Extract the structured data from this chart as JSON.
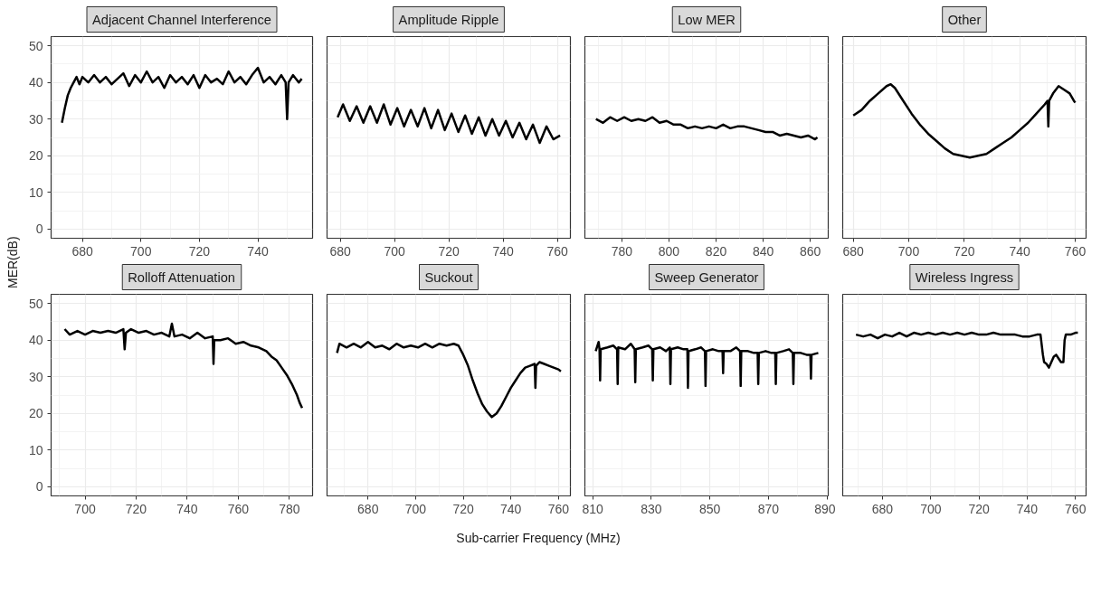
{
  "chart_data": [
    {
      "type": "line",
      "title": "Adjacent Channel Interference",
      "ylabel": "MER(dB)",
      "color": "#000000",
      "grid": true,
      "xlim": [
        669.3,
        758.7
      ],
      "xticks": [
        680,
        700,
        720,
        740
      ],
      "ylim": [
        -2.5,
        52.5
      ],
      "yticks": [
        0,
        10,
        20,
        30,
        40,
        50
      ],
      "x": [
        673,
        674,
        675,
        676,
        677,
        678,
        679,
        680,
        682,
        684,
        686,
        688,
        690,
        692,
        694,
        696,
        698,
        700,
        702,
        704,
        706,
        708,
        710,
        712,
        714,
        716,
        718,
        720,
        722,
        724,
        726,
        728,
        730,
        732,
        734,
        736,
        738,
        740,
        742,
        744,
        746,
        748,
        749.5,
        750,
        750.5,
        752,
        754,
        755
      ],
      "values": [
        29,
        33,
        36.5,
        38.5,
        40,
        41.5,
        39.5,
        41.5,
        40,
        42,
        40,
        41.5,
        39.5,
        41,
        42.5,
        39,
        42,
        40,
        43,
        40,
        41.5,
        38.5,
        42,
        40,
        41.5,
        39.5,
        42,
        38.5,
        42,
        40,
        41,
        39.5,
        43,
        40,
        41.5,
        39.5,
        42,
        44,
        40,
        41.5,
        39.5,
        42,
        40,
        30,
        40,
        42,
        40,
        41
      ]
    },
    {
      "type": "line",
      "title": "Amplitude Ripple",
      "color": "#000000",
      "grid": true,
      "tick_labels": "x",
      "xlim": [
        675.1,
        764.8
      ],
      "xticks": [
        680,
        700,
        720,
        740,
        760
      ],
      "ylim": [
        -2.5,
        52.5
      ],
      "yticks": [
        0,
        10,
        20,
        30,
        40,
        50
      ],
      "x": [
        679,
        681,
        683.5,
        686,
        688.5,
        691,
        693.5,
        696,
        698.5,
        701,
        703.5,
        706,
        708.5,
        711,
        713.5,
        716,
        718.5,
        721,
        723.5,
        726,
        728.5,
        731,
        733.5,
        736,
        738.5,
        741,
        743.5,
        746,
        748.5,
        751,
        753.5,
        756,
        758.5,
        761
      ],
      "values": [
        30.5,
        34,
        29.5,
        33.5,
        29,
        33.5,
        29,
        34,
        28.5,
        33,
        28,
        32.5,
        28,
        33,
        27.5,
        32.5,
        27,
        31.5,
        26.5,
        31,
        26,
        30.5,
        25.5,
        30,
        25.5,
        29.5,
        25,
        29,
        24.5,
        28.5,
        23.5,
        28,
        24.5,
        25.5
      ]
    },
    {
      "type": "line",
      "title": "Low MER",
      "color": "#000000",
      "grid": true,
      "tick_labels": "x",
      "xlim": [
        764.3,
        867.6
      ],
      "xticks": [
        780,
        800,
        820,
        840,
        860
      ],
      "ylim": [
        -2.5,
        52.5
      ],
      "yticks": [
        0,
        10,
        20,
        30,
        40,
        50
      ],
      "x": [
        769,
        772,
        775,
        778,
        781,
        784,
        787,
        790,
        793,
        796,
        799,
        802,
        805,
        808,
        811,
        814,
        817,
        820,
        823,
        826,
        829,
        832,
        835,
        838,
        841,
        844,
        847,
        850,
        853,
        856,
        859,
        862,
        863
      ],
      "values": [
        30,
        29,
        30.5,
        29.5,
        30.5,
        29.5,
        30,
        29.5,
        30.5,
        29,
        29.5,
        28.5,
        28.5,
        27.5,
        28,
        27.5,
        28,
        27.5,
        28.5,
        27.5,
        28,
        28,
        27.5,
        27,
        26.5,
        26.5,
        25.5,
        26,
        25.5,
        25,
        25.5,
        24.5,
        25
      ]
    },
    {
      "type": "line",
      "title": "Other",
      "color": "#000000",
      "grid": true,
      "tick_labels": "x",
      "xlim": [
        676.2,
        763.9
      ],
      "xticks": [
        680,
        700,
        720,
        740,
        760
      ],
      "ylim": [
        -2.5,
        52.5
      ],
      "yticks": [
        0,
        10,
        20,
        30,
        40,
        50
      ],
      "x": [
        680,
        683,
        686,
        689,
        692,
        693.5,
        695,
        698,
        701,
        704,
        707,
        710,
        713,
        716,
        719,
        722,
        725,
        728,
        731,
        734,
        737,
        740,
        743,
        746,
        749,
        750,
        750.3,
        750.6,
        752,
        754,
        756,
        758,
        759.5,
        760
      ],
      "values": [
        31,
        32.5,
        35,
        37,
        39,
        39.5,
        38.5,
        35,
        31.5,
        28.5,
        26,
        24,
        22,
        20.5,
        20,
        19.5,
        20,
        20.5,
        22,
        23.5,
        25,
        27,
        29,
        31.5,
        34,
        35,
        28,
        35,
        37,
        39,
        38,
        37,
        35,
        34.5
      ]
    },
    {
      "type": "line",
      "title": "Rolloff Attenuation",
      "color": "#000000",
      "grid": true,
      "xlim": [
        686.7,
        789.1
      ],
      "xticks": [
        700,
        720,
        740,
        760,
        780
      ],
      "ylim": [
        -2.5,
        52.5
      ],
      "yticks": [
        0,
        10,
        20,
        30,
        40,
        50
      ],
      "x": [
        692,
        694,
        697,
        700,
        703,
        706,
        709,
        712,
        715,
        715.5,
        716,
        718,
        721,
        724,
        727,
        730,
        733,
        734,
        735,
        738,
        741,
        744,
        747,
        750,
        750.3,
        750.6,
        753,
        756,
        759,
        762,
        765,
        768,
        771,
        773,
        775,
        777,
        779,
        781,
        783,
        784,
        785
      ],
      "values": [
        43,
        41.5,
        42.5,
        41.5,
        42.5,
        42,
        42.5,
        42,
        43,
        37.5,
        42,
        43,
        42,
        42.5,
        41.5,
        42,
        41,
        44.5,
        41,
        41.5,
        40.5,
        42,
        40.5,
        41,
        33.5,
        40,
        40,
        40.5,
        39,
        39.5,
        38.5,
        38,
        37,
        35.5,
        34.5,
        32.5,
        30.5,
        28,
        25,
        23,
        21.5
      ]
    },
    {
      "type": "line",
      "title": "Suckout",
      "xlabel": "Sub-carrier Frequency (MHz)",
      "color": "#000000",
      "grid": true,
      "tick_labels": "x",
      "xlim": [
        662.8,
        765
      ],
      "xticks": [
        680,
        700,
        720,
        740,
        760
      ],
      "ylim": [
        -2.5,
        52.5
      ],
      "yticks": [
        0,
        10,
        20,
        30,
        40,
        50
      ],
      "x": [
        667,
        668,
        671,
        674,
        677,
        680,
        683,
        686,
        689,
        692,
        695,
        698,
        701,
        704,
        707,
        710,
        713,
        716,
        718,
        720,
        722,
        724,
        726,
        728,
        730,
        732,
        734,
        736,
        738,
        740,
        742,
        744,
        746,
        748,
        750,
        750.3,
        750.6,
        752,
        754,
        756,
        758,
        760,
        761
      ],
      "values": [
        36.5,
        39,
        38,
        39,
        38,
        39.5,
        38,
        38.5,
        37.5,
        39,
        38,
        38.5,
        38,
        39,
        38,
        39,
        38.5,
        39,
        38.5,
        36,
        33,
        29,
        25.5,
        22.5,
        20.5,
        19,
        20,
        22,
        24.5,
        27,
        29,
        31,
        32.5,
        33,
        33.5,
        27,
        33,
        34,
        33.5,
        33,
        32.5,
        32,
        31.5
      ]
    },
    {
      "type": "line",
      "title": "Sweep Generator",
      "color": "#000000",
      "grid": true,
      "tick_labels": "x",
      "xlim": [
        807.3,
        890.4
      ],
      "xticks": [
        810,
        830,
        850,
        870,
        890
      ],
      "ylim": [
        -2.5,
        52.5
      ],
      "yticks": [
        0,
        10,
        20,
        30,
        40,
        50
      ],
      "x": [
        811,
        812,
        812.3,
        812.5,
        812.7,
        815,
        817,
        818.3,
        818.5,
        818.7,
        821,
        823,
        824.3,
        824.5,
        824.7,
        827,
        829,
        830.3,
        830.5,
        830.7,
        833,
        835,
        836.3,
        836.5,
        836.7,
        839,
        841,
        842.3,
        842.5,
        842.7,
        845,
        847,
        848.3,
        848.5,
        848.7,
        851,
        853,
        854.3,
        854.5,
        854.7,
        857,
        859,
        860.3,
        860.5,
        860.7,
        863,
        865,
        866.3,
        866.5,
        866.7,
        869,
        871,
        872.3,
        872.5,
        872.7,
        875,
        877,
        878.3,
        878.5,
        878.7,
        881,
        883,
        884.3,
        884.5,
        884.7,
        887
      ],
      "values": [
        37,
        39.5,
        37.5,
        29,
        37.5,
        38,
        38.5,
        37.5,
        28,
        38,
        37.5,
        39,
        37.5,
        28.5,
        37.5,
        38,
        38.5,
        37.5,
        29,
        37.5,
        38,
        37,
        38,
        28,
        37.5,
        38,
        37.5,
        37.5,
        27,
        37,
        37.5,
        38,
        37,
        27.5,
        37,
        37.5,
        37,
        37,
        31,
        37,
        37,
        38,
        37,
        27.5,
        37,
        37,
        36.5,
        36.5,
        28,
        36.5,
        37,
        36.5,
        36.5,
        28,
        36.5,
        37,
        37.5,
        36.5,
        28,
        36.5,
        36.5,
        36,
        36,
        29.5,
        36,
        36.5
      ]
    },
    {
      "type": "line",
      "title": "Wireless Ingress",
      "color": "#000000",
      "grid": true,
      "tick_labels": "x",
      "xlim": [
        663.5,
        764.4
      ],
      "xticks": [
        680,
        700,
        720,
        740,
        760
      ],
      "ylim": [
        -2.5,
        52.5
      ],
      "yticks": [
        0,
        10,
        20,
        30,
        40,
        50
      ],
      "x": [
        669,
        672,
        675,
        678,
        681,
        684,
        687,
        690,
        693,
        696,
        699,
        702,
        705,
        708,
        711,
        714,
        717,
        720,
        723,
        726,
        729,
        732,
        735,
        738,
        741,
        744,
        745.5,
        746.5,
        747,
        748,
        749,
        750,
        751,
        752,
        753,
        754,
        755,
        755.5,
        756,
        758,
        760,
        761
      ],
      "values": [
        41.5,
        41,
        41.5,
        40.5,
        41.5,
        41,
        42,
        41,
        42,
        41.5,
        42,
        41.5,
        42,
        41.5,
        42,
        41.5,
        42,
        41.5,
        41.5,
        42,
        41.5,
        41.5,
        41.5,
        41,
        41,
        41.5,
        41.5,
        36,
        34,
        33.5,
        32.5,
        34,
        35.5,
        36,
        35,
        34,
        34,
        40,
        41.5,
        41.5,
        42,
        42
      ]
    }
  ]
}
